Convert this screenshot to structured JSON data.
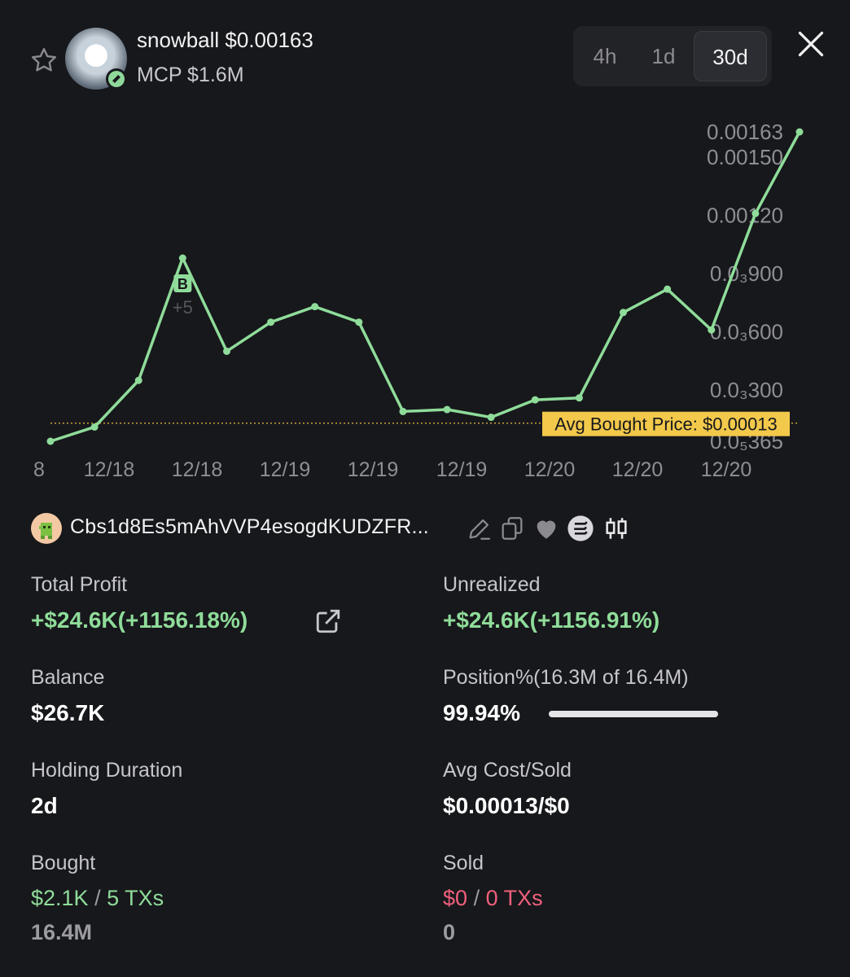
{
  "token": {
    "name": "snowball",
    "price": "$0.00163",
    "mcp": "MCP $1.6M"
  },
  "timeframes": [
    {
      "label": "4h",
      "active": false
    },
    {
      "label": "1d",
      "active": false
    },
    {
      "label": "30d",
      "active": true
    }
  ],
  "chart_data": {
    "type": "line",
    "x": [
      "12/18",
      "12/18",
      "12/18",
      "12/18",
      "12/18",
      "12/18",
      "12/19",
      "12/19",
      "12/19",
      "12/19",
      "12/19",
      "12/19",
      "12/20",
      "12/20",
      "12/20",
      "12/20",
      "12/20",
      "12/20"
    ],
    "values": [
      3.65e-05,
      0.00011,
      0.00035,
      0.00098,
      0.0005,
      0.00065,
      0.00073,
      0.00065,
      0.00019,
      0.0002,
      0.00016,
      0.00025,
      0.00026,
      0.0007,
      0.00082,
      0.00061,
      0.00121,
      0.00163
    ],
    "x_tick_labels": [
      "8",
      "12/18",
      "12/18",
      "12/19",
      "12/19",
      "12/19",
      "12/20",
      "12/20",
      "12/20"
    ],
    "y_tick_labels": [
      {
        "label": "0.00163",
        "value": 0.00163
      },
      {
        "label": "0.00150",
        "value": 0.0015
      },
      {
        "label": "0.00120",
        "value": 0.0012
      },
      {
        "label": "0.0₃900",
        "value": 0.0009
      },
      {
        "label": "0.0₃600",
        "value": 0.0006
      },
      {
        "label": "0.0₃300",
        "value": 0.0003
      },
      {
        "label": "0.0₅365",
        "value": 3.65e-05
      }
    ],
    "ylim": [
      3.65e-05,
      0.00163
    ],
    "avg_bought_price": 0.00013,
    "avg_label": "Avg Bought Price: $0.00013",
    "buy_marker": {
      "index": 3,
      "letter": "B",
      "count_label": "+5"
    },
    "line_color": "#8fdc9a",
    "grid": false
  },
  "wallet": {
    "address": "Cbs1d8Es5mAhVVP4esogdKUDZFR..."
  },
  "stats": {
    "total_profit": {
      "label": "Total Profit",
      "value": "+$24.6K(+1156.18%)"
    },
    "unrealized": {
      "label": "Unrealized",
      "value": "+$24.6K(+1156.91%)"
    },
    "balance": {
      "label": "Balance",
      "value": "$26.7K"
    },
    "position": {
      "label": "Position%(16.3M of 16.4M)",
      "value": "99.94%",
      "fraction": 0.9994
    },
    "holding": {
      "label": "Holding Duration",
      "value": "2d"
    },
    "avg_cost": {
      "label": "Avg Cost/Sold",
      "value": "$0.00013/$0"
    },
    "bought": {
      "label": "Bought",
      "usd": "$2.1K",
      "sep": "/",
      "txs": "5 TXs",
      "amount": "16.4M"
    },
    "sold": {
      "label": "Sold",
      "usd": "$0",
      "sep": "/",
      "txs": "0 TXs",
      "amount": "0"
    }
  },
  "colors": {
    "background": "#17181b",
    "positive": "#8fdc9a",
    "negative": "#f0607c",
    "avg_label_bg": "#f3c94b"
  }
}
